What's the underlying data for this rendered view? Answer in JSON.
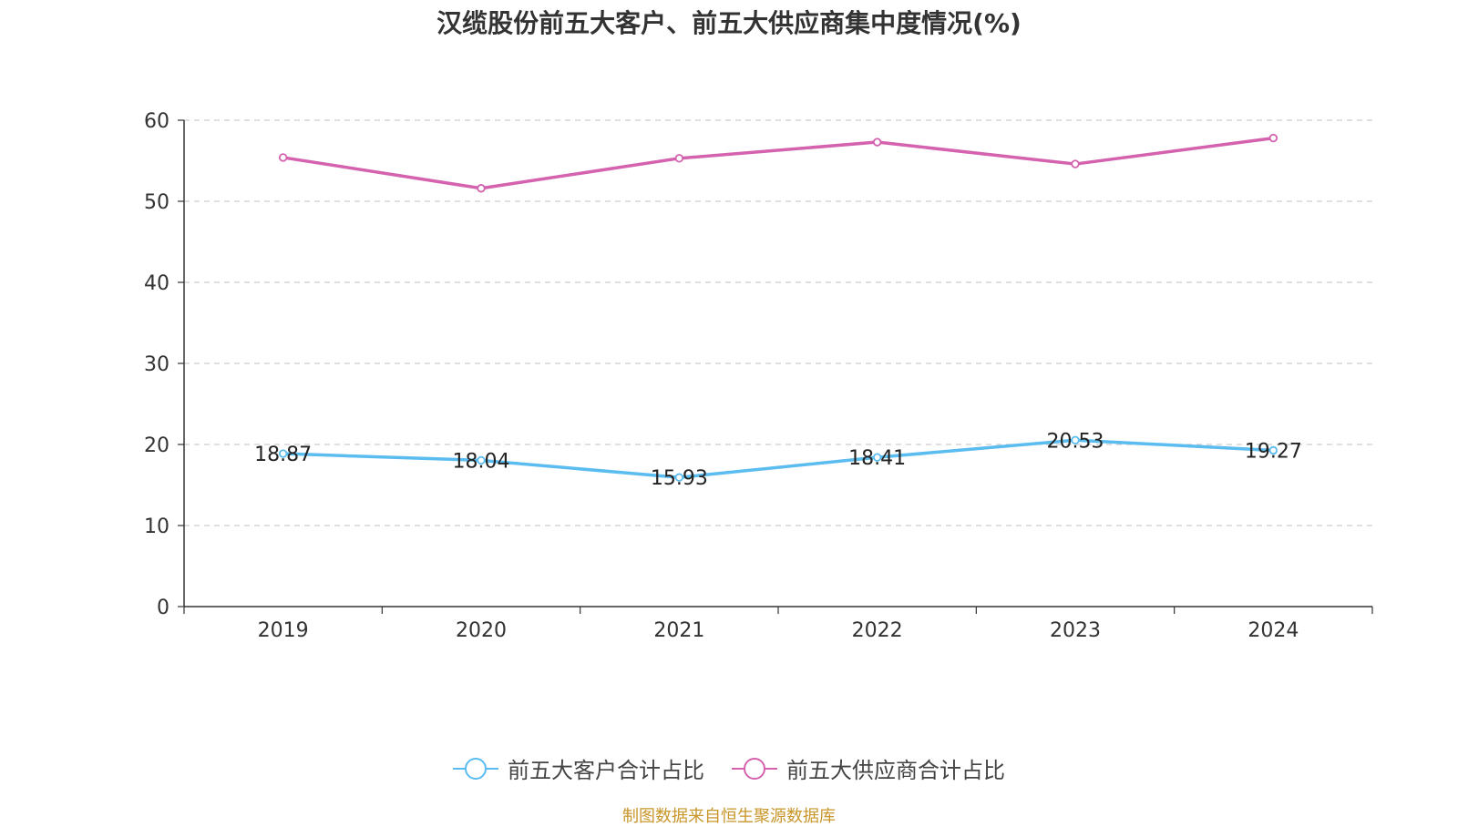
{
  "chart_data": {
    "type": "line",
    "title": "汉缆股份前五大客户、前五大供应商集中度情况(%)",
    "categories": [
      "2019",
      "2020",
      "2021",
      "2022",
      "2023",
      "2024"
    ],
    "ylim": [
      0,
      60
    ],
    "yticks": [
      0,
      10,
      20,
      30,
      40,
      50,
      60
    ],
    "grid": true,
    "legend_position": "bottom",
    "series": [
      {
        "name": "前五大客户合计占比",
        "color": "#5bbcf0",
        "values": [
          18.87,
          18.04,
          15.93,
          18.41,
          20.53,
          19.27
        ],
        "labels": [
          "18.87",
          "18.04",
          "15.93",
          "18.41",
          "20.53",
          "19.27"
        ],
        "show_labels": true
      },
      {
        "name": "前五大供应商合计占比",
        "color": "#d462ae",
        "values": [
          55.4,
          51.6,
          55.3,
          57.3,
          54.6,
          57.8
        ],
        "show_labels": false
      }
    ]
  },
  "source": "制图数据来自恒生聚源数据库"
}
